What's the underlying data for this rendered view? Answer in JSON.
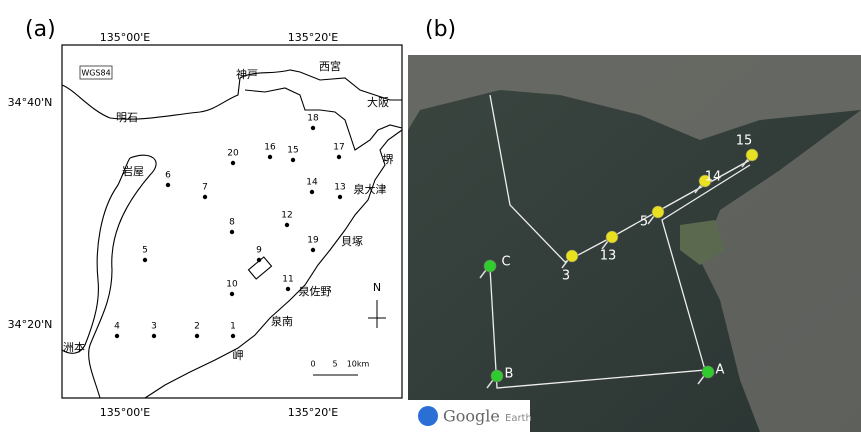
{
  "panel_a": {
    "label": "(a)",
    "top_axis": [
      "135°00'E",
      "135°20'E"
    ],
    "bottom_axis": [
      "135°00'E",
      "135°20'E"
    ],
    "left_axis": [
      "34°40'N",
      "34°20'N"
    ],
    "datum": "WGS84",
    "places": [
      "神戸",
      "西宮",
      "大阪",
      "明石",
      "堺",
      "岩屋",
      "泉大津",
      "貝塚",
      "泉佐野",
      "泉南",
      "洲本",
      "岬"
    ],
    "stations": [
      "18",
      "16",
      "15",
      "20",
      "17",
      "6",
      "7",
      "14",
      "13",
      "8",
      "12",
      "19",
      "5",
      "9",
      "10",
      "11",
      "4",
      "3",
      "2",
      "1"
    ],
    "scale": [
      "0",
      "5",
      "10km"
    ],
    "north": "N"
  },
  "panel_b": {
    "label": "(b)",
    "pins": [
      "15",
      "14",
      "5",
      "13",
      "3",
      "C",
      "B",
      "A"
    ],
    "logo": {
      "brand": "Google",
      "product": "Earth"
    }
  }
}
